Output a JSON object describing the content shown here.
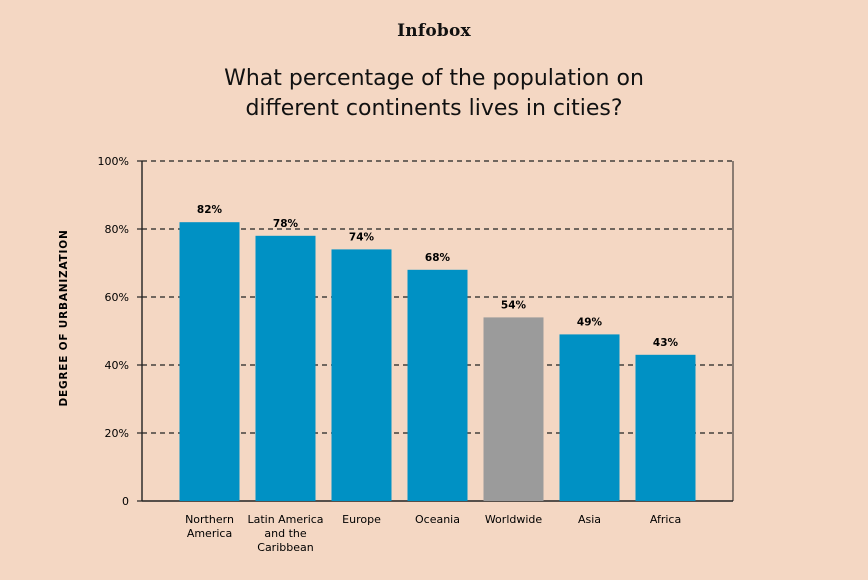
{
  "brand": "Infobox",
  "title_lines": [
    "What percentage of the population on",
    "different continents lives in cities?"
  ],
  "chart_data": {
    "type": "bar",
    "title": "What percentage of the population on different continents lives in cities?",
    "xlabel": "",
    "ylabel": "DEGREE OF URBANIZATION",
    "ylim": [
      0,
      100
    ],
    "yticks": [
      0,
      20,
      40,
      60,
      80,
      100
    ],
    "ytick_labels": [
      "0",
      "20%",
      "40%",
      "60%",
      "80%",
      "100%"
    ],
    "grid": "dashed horizontal",
    "categories": [
      [
        "Northern",
        "America"
      ],
      [
        "Latin America",
        "and the",
        "Caribbean"
      ],
      [
        "Europe"
      ],
      [
        "Oceania"
      ],
      [
        "Worldwide"
      ],
      [
        "Asia"
      ],
      [
        "Africa"
      ]
    ],
    "values": [
      82,
      78,
      74,
      68,
      54,
      49,
      43
    ],
    "value_labels": [
      "82%",
      "78%",
      "74%",
      "68%",
      "54%",
      "49%",
      "43%"
    ],
    "bar_colors": [
      "#0091c4",
      "#0091c4",
      "#0091c4",
      "#0091c4",
      "#9b9b9b",
      "#0091c4",
      "#0091c4"
    ]
  }
}
